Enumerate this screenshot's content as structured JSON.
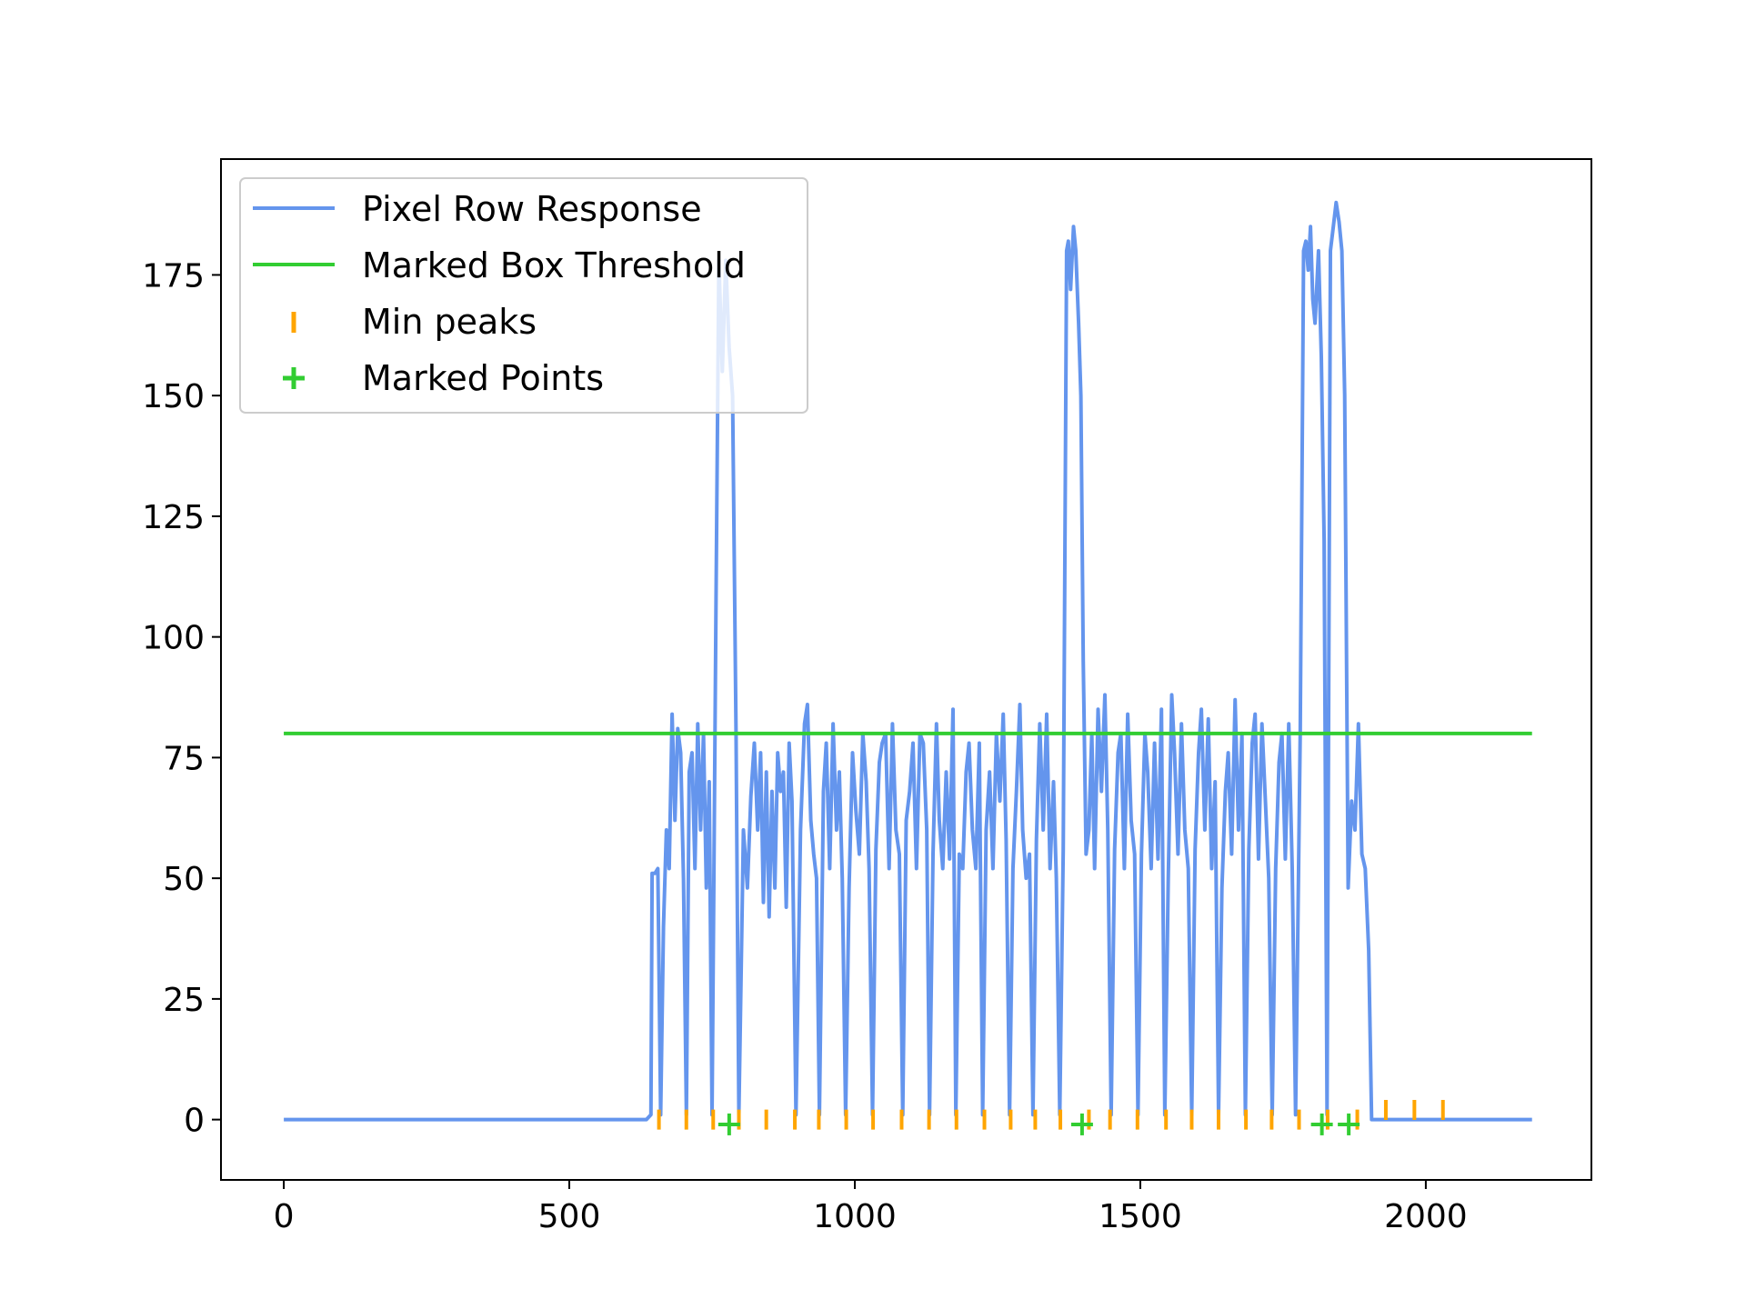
{
  "chart_data": {
    "type": "line",
    "title": "",
    "xlabel": "",
    "ylabel": "",
    "xlim": [
      -110,
      2290
    ],
    "ylim": [
      -12.5,
      199
    ],
    "xticks": [
      0,
      500,
      1000,
      1500,
      2000
    ],
    "yticks": [
      0,
      25,
      50,
      75,
      100,
      125,
      150,
      175
    ],
    "xtick_labels": [
      "0",
      "500",
      "1000",
      "1500",
      "2000"
    ],
    "ytick_labels": [
      "0",
      "25",
      "50",
      "75",
      "100",
      "125",
      "150",
      "175"
    ],
    "grid": false,
    "legend_position": "top-left",
    "colors": {
      "response": "#6495ed",
      "threshold": "#32cd32",
      "min_peaks": "#ffa500",
      "marked_points": "#32cd32"
    },
    "series": [
      {
        "name": "Pixel Row Response",
        "kind": "line",
        "points": [
          [
            0,
            0
          ],
          [
            635,
            0
          ],
          [
            643,
            1
          ],
          [
            645,
            51
          ],
          [
            650,
            51
          ],
          [
            655,
            52
          ],
          [
            660,
            1
          ],
          [
            665,
            40
          ],
          [
            670,
            60
          ],
          [
            675,
            52
          ],
          [
            680,
            84
          ],
          [
            685,
            62
          ],
          [
            690,
            81
          ],
          [
            695,
            76
          ],
          [
            700,
            50
          ],
          [
            705,
            1
          ],
          [
            710,
            72
          ],
          [
            715,
            76
          ],
          [
            720,
            52
          ],
          [
            725,
            82
          ],
          [
            730,
            60
          ],
          [
            735,
            80
          ],
          [
            740,
            48
          ],
          [
            745,
            70
          ],
          [
            750,
            1
          ],
          [
            757,
            108
          ],
          [
            762,
            178
          ],
          [
            768,
            155
          ],
          [
            774,
            178
          ],
          [
            780,
            160
          ],
          [
            786,
            150
          ],
          [
            792,
            80
          ],
          [
            797,
            1
          ],
          [
            805,
            60
          ],
          [
            812,
            48
          ],
          [
            818,
            67
          ],
          [
            824,
            78
          ],
          [
            830,
            60
          ],
          [
            835,
            76
          ],
          [
            840,
            45
          ],
          [
            845,
            72
          ],
          [
            850,
            42
          ],
          [
            855,
            68
          ],
          [
            860,
            48
          ],
          [
            865,
            76
          ],
          [
            870,
            68
          ],
          [
            875,
            72
          ],
          [
            880,
            44
          ],
          [
            885,
            78
          ],
          [
            890,
            66
          ],
          [
            897,
            1
          ],
          [
            905,
            60
          ],
          [
            912,
            82
          ],
          [
            917,
            86
          ],
          [
            923,
            62
          ],
          [
            928,
            55
          ],
          [
            933,
            50
          ],
          [
            938,
            1
          ],
          [
            945,
            68
          ],
          [
            950,
            78
          ],
          [
            956,
            52
          ],
          [
            962,
            82
          ],
          [
            968,
            60
          ],
          [
            973,
            72
          ],
          [
            978,
            50
          ],
          [
            984,
            1
          ],
          [
            990,
            48
          ],
          [
            996,
            76
          ],
          [
            1002,
            64
          ],
          [
            1008,
            55
          ],
          [
            1014,
            80
          ],
          [
            1020,
            70
          ],
          [
            1025,
            52
          ],
          [
            1031,
            1
          ],
          [
            1037,
            56
          ],
          [
            1043,
            74
          ],
          [
            1048,
            78
          ],
          [
            1054,
            80
          ],
          [
            1060,
            52
          ],
          [
            1066,
            82
          ],
          [
            1072,
            60
          ],
          [
            1078,
            55
          ],
          [
            1084,
            1
          ],
          [
            1090,
            62
          ],
          [
            1096,
            68
          ],
          [
            1102,
            78
          ],
          [
            1108,
            52
          ],
          [
            1114,
            80
          ],
          [
            1120,
            78
          ],
          [
            1126,
            60
          ],
          [
            1131,
            1
          ],
          [
            1137,
            55
          ],
          [
            1143,
            82
          ],
          [
            1148,
            62
          ],
          [
            1154,
            52
          ],
          [
            1160,
            72
          ],
          [
            1166,
            54
          ],
          [
            1172,
            85
          ],
          [
            1177,
            1
          ],
          [
            1183,
            55
          ],
          [
            1189,
            52
          ],
          [
            1195,
            72
          ],
          [
            1200,
            78
          ],
          [
            1206,
            60
          ],
          [
            1212,
            52
          ],
          [
            1218,
            78
          ],
          [
            1224,
            1
          ],
          [
            1230,
            60
          ],
          [
            1236,
            72
          ],
          [
            1242,
            52
          ],
          [
            1248,
            80
          ],
          [
            1254,
            66
          ],
          [
            1260,
            84
          ],
          [
            1265,
            58
          ],
          [
            1271,
            1
          ],
          [
            1277,
            52
          ],
          [
            1283,
            68
          ],
          [
            1289,
            86
          ],
          [
            1294,
            60
          ],
          [
            1300,
            50
          ],
          [
            1306,
            55
          ],
          [
            1312,
            1
          ],
          [
            1318,
            58
          ],
          [
            1324,
            82
          ],
          [
            1330,
            60
          ],
          [
            1336,
            84
          ],
          [
            1342,
            52
          ],
          [
            1348,
            70
          ],
          [
            1353,
            50
          ],
          [
            1359,
            1
          ],
          [
            1365,
            56
          ],
          [
            1371,
            180
          ],
          [
            1374,
            182
          ],
          [
            1378,
            172
          ],
          [
            1383,
            185
          ],
          [
            1387,
            180
          ],
          [
            1392,
            165
          ],
          [
            1396,
            150
          ],
          [
            1400,
            95
          ],
          [
            1405,
            55
          ],
          [
            1410,
            60
          ],
          [
            1415,
            80
          ],
          [
            1420,
            52
          ],
          [
            1426,
            85
          ],
          [
            1432,
            68
          ],
          [
            1438,
            88
          ],
          [
            1443,
            60
          ],
          [
            1449,
            1
          ],
          [
            1455,
            56
          ],
          [
            1461,
            76
          ],
          [
            1466,
            80
          ],
          [
            1472,
            52
          ],
          [
            1478,
            84
          ],
          [
            1484,
            62
          ],
          [
            1490,
            55
          ],
          [
            1496,
            1
          ],
          [
            1502,
            55
          ],
          [
            1508,
            80
          ],
          [
            1513,
            72
          ],
          [
            1519,
            52
          ],
          [
            1525,
            78
          ],
          [
            1531,
            54
          ],
          [
            1537,
            85
          ],
          [
            1543,
            1
          ],
          [
            1549,
            50
          ],
          [
            1555,
            88
          ],
          [
            1560,
            76
          ],
          [
            1566,
            55
          ],
          [
            1572,
            82
          ],
          [
            1578,
            60
          ],
          [
            1584,
            52
          ],
          [
            1590,
            1
          ],
          [
            1596,
            56
          ],
          [
            1602,
            76
          ],
          [
            1607,
            85
          ],
          [
            1613,
            60
          ],
          [
            1619,
            83
          ],
          [
            1625,
            52
          ],
          [
            1631,
            70
          ],
          [
            1637,
            1
          ],
          [
            1643,
            48
          ],
          [
            1649,
            68
          ],
          [
            1654,
            76
          ],
          [
            1660,
            55
          ],
          [
            1666,
            87
          ],
          [
            1672,
            60
          ],
          [
            1678,
            80
          ],
          [
            1684,
            1
          ],
          [
            1690,
            56
          ],
          [
            1696,
            78
          ],
          [
            1701,
            84
          ],
          [
            1707,
            54
          ],
          [
            1713,
            82
          ],
          [
            1719,
            66
          ],
          [
            1725,
            50
          ],
          [
            1731,
            1
          ],
          [
            1737,
            52
          ],
          [
            1743,
            74
          ],
          [
            1748,
            80
          ],
          [
            1754,
            54
          ],
          [
            1760,
            82
          ],
          [
            1766,
            52
          ],
          [
            1772,
            1
          ],
          [
            1780,
            80
          ],
          [
            1786,
            180
          ],
          [
            1790,
            182
          ],
          [
            1794,
            176
          ],
          [
            1798,
            185
          ],
          [
            1802,
            170
          ],
          [
            1806,
            165
          ],
          [
            1812,
            180
          ],
          [
            1817,
            158
          ],
          [
            1822,
            120
          ],
          [
            1827,
            1
          ],
          [
            1833,
            180
          ],
          [
            1838,
            185
          ],
          [
            1843,
            190
          ],
          [
            1848,
            186
          ],
          [
            1853,
            180
          ],
          [
            1858,
            150
          ],
          [
            1864,
            48
          ],
          [
            1870,
            66
          ],
          [
            1876,
            60
          ],
          [
            1882,
            82
          ],
          [
            1888,
            55
          ],
          [
            1894,
            52
          ],
          [
            1900,
            35
          ],
          [
            1905,
            0
          ],
          [
            2186,
            0
          ]
        ]
      },
      {
        "name": "Marked Box Threshold",
        "kind": "hline",
        "x": [
          0,
          2186
        ],
        "y": 80
      },
      {
        "name": "Min peaks",
        "kind": "scatter",
        "marker": "vline",
        "x": [
          657,
          705,
          752,
          797,
          845,
          895,
          937,
          985,
          1032,
          1082,
          1130,
          1178,
          1227,
          1273,
          1316,
          1360,
          1410,
          1447,
          1495,
          1545,
          1590,
          1637,
          1685,
          1730,
          1778,
          1828,
          1880,
          1930,
          1980,
          2030
        ],
        "y": [
          0,
          0,
          0,
          0,
          0,
          0,
          0,
          0,
          0,
          0,
          0,
          0,
          0,
          0,
          0,
          0,
          0,
          0,
          0,
          0,
          0,
          0,
          0,
          0,
          0,
          0,
          0,
          2,
          2,
          2
        ]
      },
      {
        "name": "Marked Points",
        "kind": "scatter",
        "marker": "plus",
        "x": [
          780,
          1398,
          1818,
          1865
        ],
        "y": [
          -1,
          -1,
          -1,
          -1
        ]
      }
    ]
  }
}
